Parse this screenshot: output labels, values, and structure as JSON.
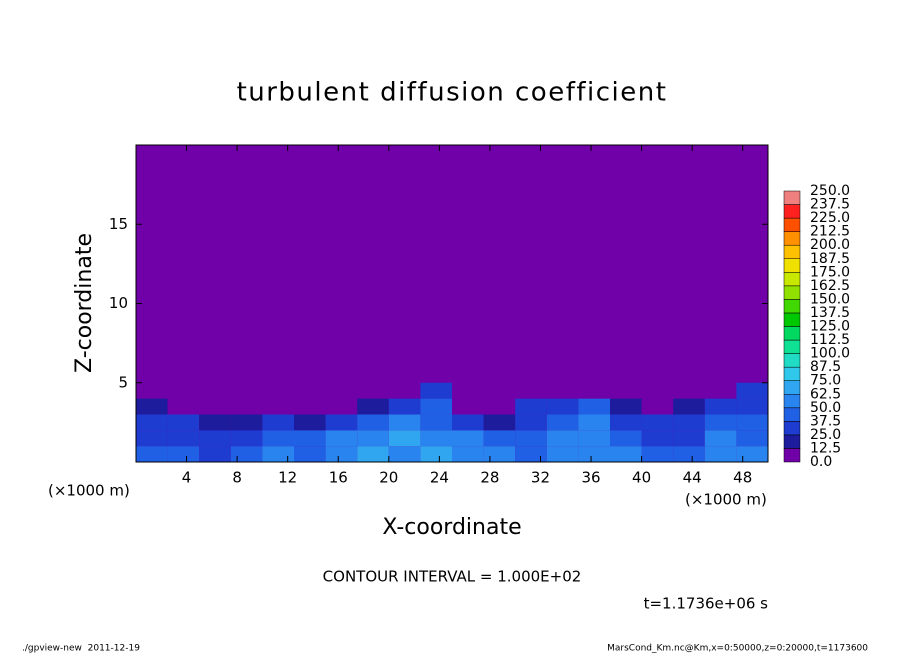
{
  "chart_data": {
    "type": "contour",
    "title": "turbulent diffusion coefficient",
    "x_label": "X-coordinate",
    "y_label": "Z-coordinate",
    "x_unit": "(×1000 m)",
    "y_unit": "(×1000 m)",
    "contour_interval": "CONTOUR INTERVAL = 1.000E+02",
    "time_label": "t=1.1736e+06 s",
    "footer_left": "./gpview-new  2011-12-19",
    "footer_right": "MarsCond_Km.nc@Km,x=0:50000,z=0:20000,t=1173600",
    "xlim": [
      0,
      50
    ],
    "xticks": [
      4,
      8,
      12,
      16,
      20,
      24,
      28,
      32,
      36,
      40,
      44,
      48
    ],
    "ylim": [
      0,
      20
    ],
    "yticks": [
      5,
      10,
      15
    ],
    "x": [
      1.25,
      3.75,
      6.25,
      8.75,
      11.25,
      13.75,
      16.25,
      18.75,
      21.25,
      23.75,
      26.25,
      28.75,
      31.25,
      33.75,
      36.25,
      38.75,
      41.25,
      43.75,
      46.25,
      48.75
    ],
    "y": [
      0.5,
      1.5,
      2.5,
      3.5,
      4.5
    ],
    "z": [
      [
        40,
        45,
        35,
        40,
        50,
        45,
        60,
        70,
        55,
        65,
        60,
        50,
        45,
        55,
        60,
        50,
        45,
        40,
        55,
        50
      ],
      [
        35,
        30,
        30,
        25,
        45,
        40,
        55,
        60,
        65,
        55,
        60,
        45,
        40,
        50,
        55,
        40,
        35,
        30,
        50,
        45
      ],
      [
        30,
        25,
        20,
        20,
        25,
        20,
        30,
        40,
        50,
        45,
        30,
        20,
        30,
        45,
        50,
        30,
        25,
        25,
        45,
        40
      ],
      [
        15,
        0,
        0,
        0,
        0,
        0,
        0,
        20,
        30,
        40,
        0,
        0,
        25,
        30,
        40,
        15,
        0,
        20,
        35,
        30
      ],
      [
        0,
        0,
        0,
        0,
        0,
        0,
        0,
        0,
        0,
        25,
        0,
        0,
        0,
        0,
        0,
        0,
        0,
        0,
        0,
        25
      ]
    ],
    "colorbar_ticks": [
      {
        "value": 0,
        "label": "0.0"
      },
      12.5,
      {
        "value": 25,
        "label": "25.0"
      },
      37.5,
      {
        "value": 50,
        "label": "50.0"
      },
      62.5,
      {
        "value": 75,
        "label": "75.0"
      },
      87.5,
      {
        "value": 100,
        "label": "100.0"
      },
      112.5,
      {
        "value": 125,
        "label": "125.0"
      },
      137.5,
      {
        "value": 150,
        "label": "150.0"
      },
      162.5,
      {
        "value": 175,
        "label": "175.0"
      },
      187.5,
      {
        "value": 200,
        "label": "200.0"
      },
      212.5,
      {
        "value": 225,
        "label": "225.0"
      },
      237.5,
      {
        "value": 250,
        "label": "250.0"
      }
    ],
    "colors": [
      "#7000a8",
      "#1c1c9c",
      "#1e3cd0",
      "#2060e4",
      "#2a84f0",
      "#30a6f0",
      "#30c8ea",
      "#20dcc4",
      "#10e094",
      "#00d860",
      "#00c800",
      "#40d800",
      "#90e000",
      "#c8e800",
      "#f0e000",
      "#ffc000",
      "#ff9000",
      "#ff5000",
      "#ff2020",
      "#f08080"
    ]
  }
}
